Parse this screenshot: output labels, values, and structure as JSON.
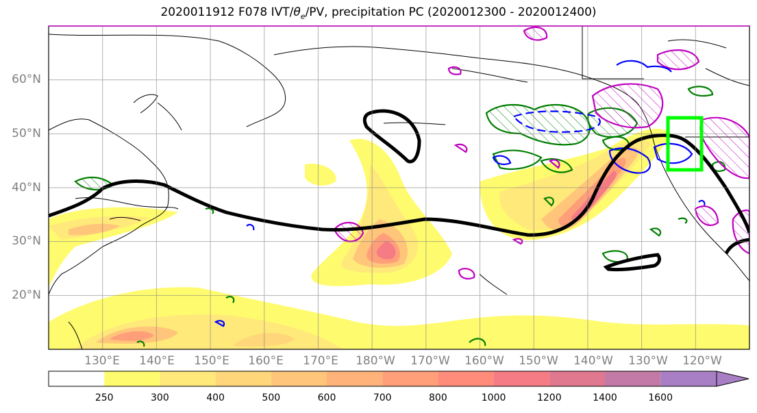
{
  "title": "2020011912 F078 IVT/θe/PV, precipitation PC (2020012300 - 2020012400)",
  "title_parts": {
    "prefix": "2020011912 F078 IVT/",
    "theta": "θ",
    "theta_sub": "e",
    "suffix": "/PV, precipitation PC (2020012300 - 2020012400)"
  },
  "map": {
    "projection": "Plate Carree",
    "lon_range": [
      120,
      250
    ],
    "lat_range": [
      10,
      70
    ],
    "grid": true,
    "lat_ticks": [
      "20°N",
      "30°N",
      "40°N",
      "50°N",
      "60°N"
    ],
    "lon_ticks": [
      "130°E",
      "140°E",
      "150°E",
      "160°E",
      "170°E",
      "180°W",
      "170°W",
      "160°W",
      "150°W",
      "140°W",
      "130°W",
      "120°W"
    ]
  },
  "colorbar": {
    "labels": [
      "250",
      "300",
      "400",
      "500",
      "600",
      "700",
      "800",
      "1000",
      "1200",
      "1400",
      "1600"
    ],
    "colors": [
      "#fffb6e",
      "#ffe97a",
      "#ffd679",
      "#ffc57a",
      "#ffb27a",
      "#ff9f7a",
      "#ff8c7a",
      "#f57c84",
      "#e07890",
      "#c37aa6",
      "#a87fc4"
    ],
    "extend": "max"
  },
  "colors": {
    "pv_contour": "#000000",
    "theta_e_contour": "#0000ff",
    "precip_contour_green": "#007f00",
    "precip_contour_magenta": "#bf00bf",
    "highlight_box": "#00ff00"
  }
}
